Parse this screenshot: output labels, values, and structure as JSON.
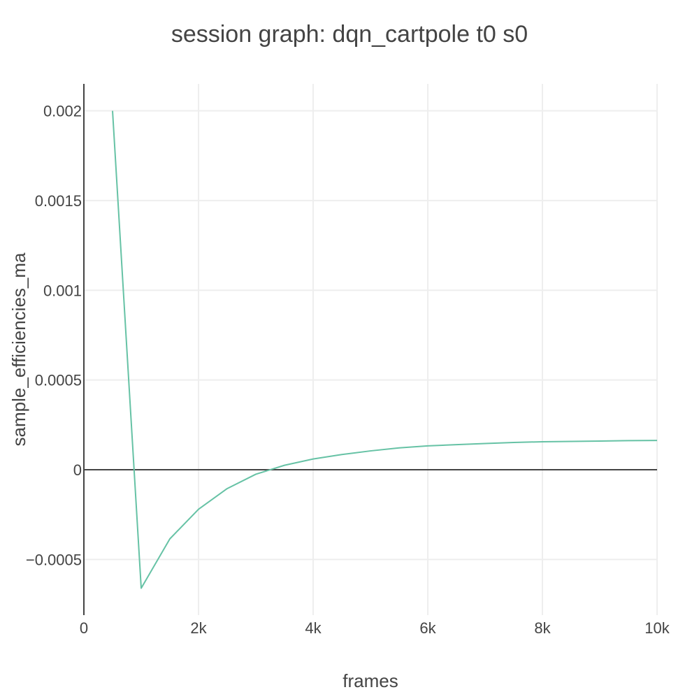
{
  "chart_data": {
    "type": "line",
    "title": "session graph: dqn_cartpole t0 s0",
    "xlabel": "frames",
    "ylabel": "sample_efficiencies_ma",
    "xlim": [
      0,
      10000
    ],
    "ylim": [
      -0.00081,
      0.00215
    ],
    "x_ticks": [
      0,
      2000,
      4000,
      6000,
      8000,
      10000
    ],
    "x_tick_labels": [
      "0",
      "2k",
      "4k",
      "6k",
      "8k",
      "10k"
    ],
    "y_ticks": [
      -0.0005,
      0,
      0.0005,
      0.001,
      0.0015,
      0.002
    ],
    "y_tick_labels": [
      "−0.0005",
      "0",
      "0.0005",
      "0.001",
      "0.0015",
      "0.002"
    ],
    "grid": true,
    "colors": {
      "series": "#66c2a5",
      "grid": "#eeeeee",
      "axis": "#444444",
      "text": "#444444",
      "background": "#ffffff"
    },
    "series": [
      {
        "x": [
          500,
          1000,
          1500,
          2000,
          2500,
          3000,
          3500,
          4000,
          4500,
          5000,
          5500,
          6000,
          6500,
          7000,
          7500,
          8000,
          8500,
          9000,
          9500,
          10000
        ],
        "y": [
          0.002,
          -0.00066,
          -0.000385,
          -0.00022,
          -0.000105,
          -2.5e-05,
          2.5e-05,
          6e-05,
          8.5e-05,
          0.000105,
          0.000122,
          0.000133,
          0.00014,
          0.000146,
          0.000152,
          0.000156,
          0.000158,
          0.00016,
          0.000162,
          0.000163
        ]
      }
    ]
  }
}
